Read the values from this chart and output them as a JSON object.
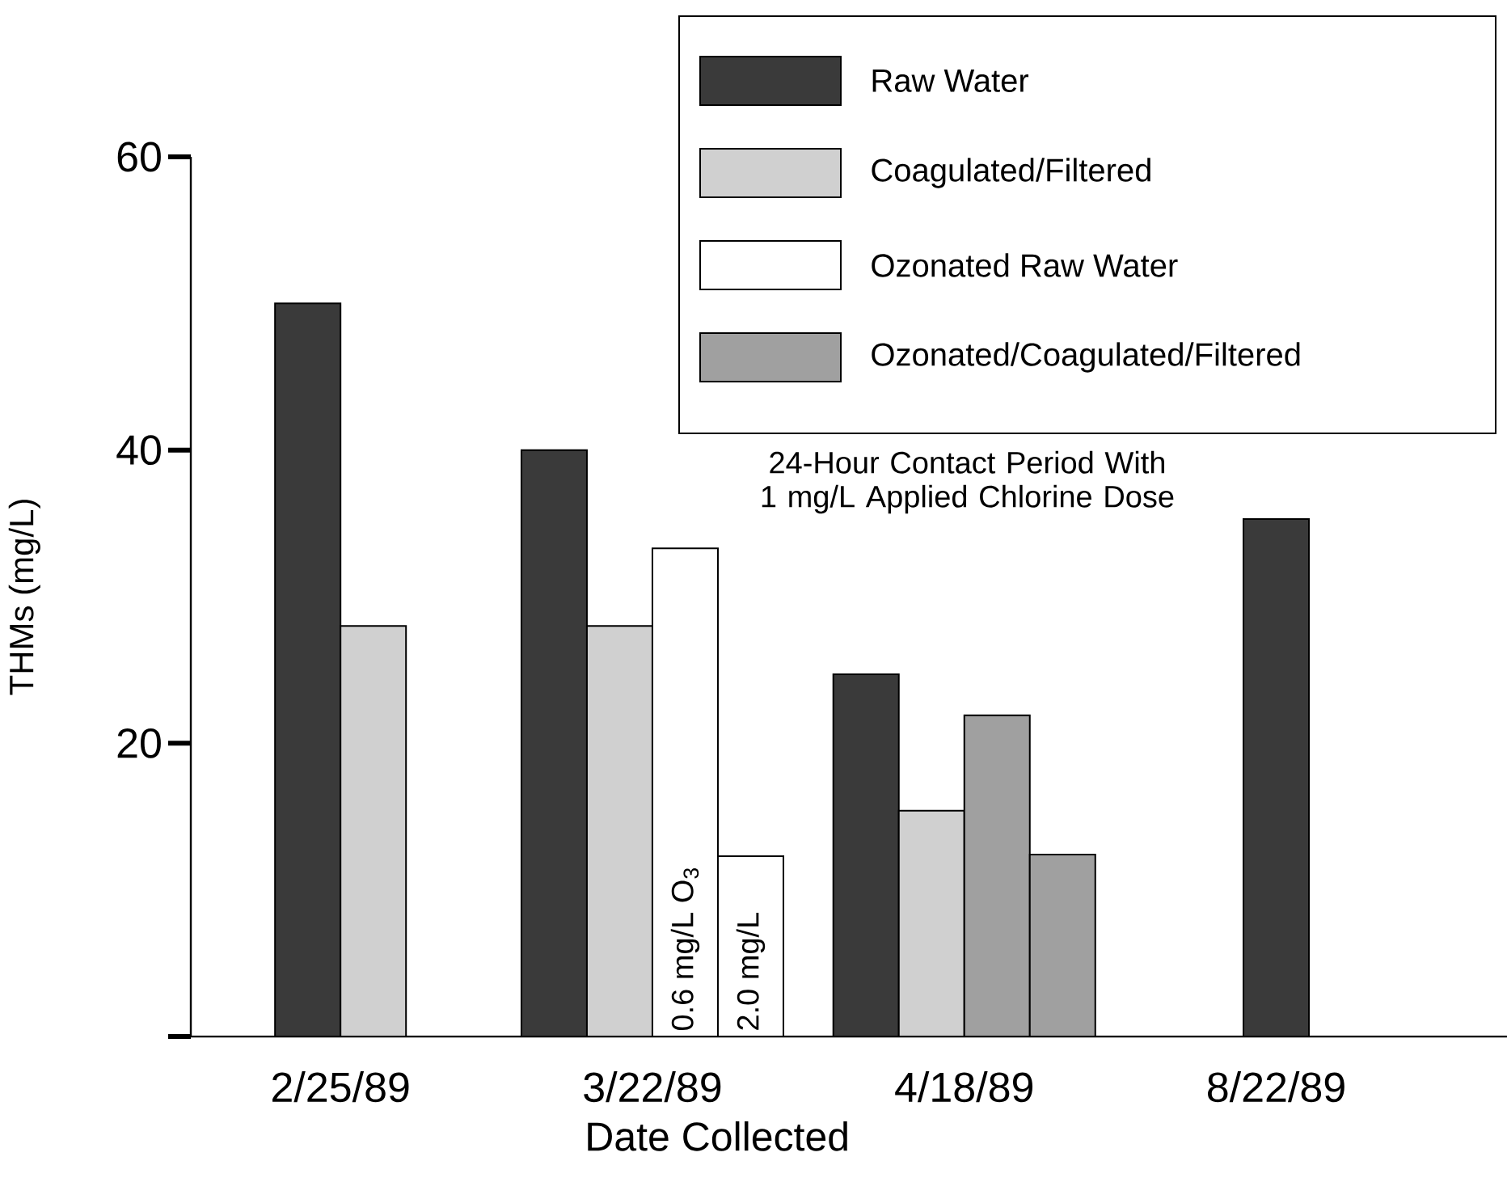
{
  "chart_data": {
    "type": "bar",
    "xlabel": "Date Collected",
    "ylabel": "THMs (mg/L)",
    "categories": [
      "2/25/89",
      "3/22/89",
      "4/18/89",
      "8/22/89"
    ],
    "series": [
      {
        "name": "Raw Water",
        "color": "#3a3a3a",
        "values": [
          50,
          40,
          24.7,
          35.3
        ]
      },
      {
        "name": "Coagulated/Filtered",
        "color": "#d0d0d0",
        "values": [
          28,
          28,
          15.4,
          null
        ]
      },
      {
        "name": "Ozonated Raw Water",
        "color": "#ffffff",
        "values": [
          null,
          33.3,
          null,
          null
        ]
      },
      {
        "name": "Ozonated/Coagulated/Filtered",
        "color": "#a0a0a0",
        "values": [
          null,
          null,
          21.9,
          null
        ]
      },
      {
        "color": "#ffffff",
        "values": [
          null,
          12.3,
          null,
          null
        ]
      },
      {
        "color": "#a0a0a0",
        "values": [
          null,
          null,
          12.4,
          null
        ]
      }
    ],
    "ylim": [
      0,
      60
    ],
    "yticks": [
      {
        "value": 0,
        "label": null
      },
      20,
      40,
      60
    ],
    "legend": "top right",
    "annotations": [
      "24-Hour Contact Period With 1 mg/L Applied Chlorine Dose",
      "0.6 mg/L O$_{3}$",
      "2.0 mg/L"
    ]
  }
}
